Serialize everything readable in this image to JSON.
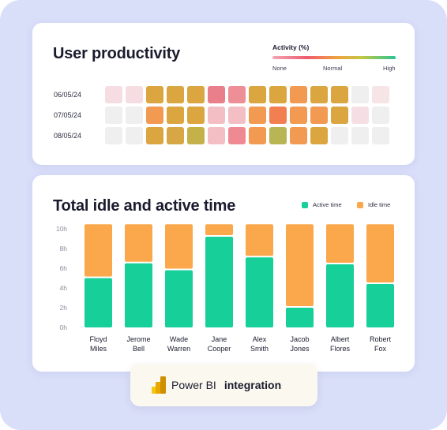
{
  "productivity": {
    "title": "User productivity",
    "legend": {
      "title": "Activity (%)",
      "levels": [
        "None",
        "Normal",
        "High"
      ]
    },
    "rows": [
      {
        "date": "06/05/24",
        "cells": [
          "#f6dde2",
          "#f6dde2",
          "#dba540",
          "#dba540",
          "#dba540",
          "#e97f8a",
          "#ee8e96",
          "#dba540",
          "#dba540",
          "#f29a52",
          "#dba540",
          "#dba540",
          "#efefef",
          "#f6e4e7"
        ]
      },
      {
        "date": "07/05/24",
        "cells": [
          "#efefef",
          "#efefef",
          "#f29a52",
          "#dba540",
          "#dba540",
          "#f3bfc5",
          "#f3bfc5",
          "#f29a52",
          "#f27f52",
          "#f29a52",
          "#f29a52",
          "#dba540",
          "#f6dfe4",
          "#efefef"
        ]
      },
      {
        "date": "08/05/24",
        "cells": [
          "#efefef",
          "#efefef",
          "#dba540",
          "#d6a744",
          "#c4b14a",
          "#f3bfc5",
          "#ef8a92",
          "#f29a52",
          "#b9b454",
          "#f29a52",
          "#dba540",
          "#efefef",
          "#efefef",
          "#efefef"
        ]
      }
    ]
  },
  "chart_data": {
    "type": "bar",
    "stacked": true,
    "title": "Total idle and active time",
    "xlabel": "",
    "ylabel": "",
    "ylim": [
      0,
      10
    ],
    "yticks": [
      "0h",
      "2h",
      "4h",
      "6h",
      "8h",
      "10h"
    ],
    "categories": [
      "Floyd\nMiles",
      "Jerome\nBell",
      "Wade\nWarren",
      "Jane\nCooper",
      "Alex\nSmith",
      "Jacob\nJones",
      "Albert\nFlores",
      "Robert\nFox"
    ],
    "series": [
      {
        "name": "Active time",
        "color": "#17cf99",
        "values": [
          5.0,
          6.5,
          5.8,
          9.2,
          7.1,
          2.0,
          6.4,
          4.4
        ]
      },
      {
        "name": "Idle time",
        "color": "#fba84c",
        "values": [
          5.3,
          3.8,
          4.5,
          1.1,
          3.2,
          8.3,
          3.9,
          5.9
        ]
      }
    ],
    "legend_position": "top-right"
  },
  "badge": {
    "brand": "Power BI",
    "word": "integration"
  },
  "colors": {
    "background": "#d9def9",
    "active": "#17cf99",
    "idle": "#fba84c"
  }
}
